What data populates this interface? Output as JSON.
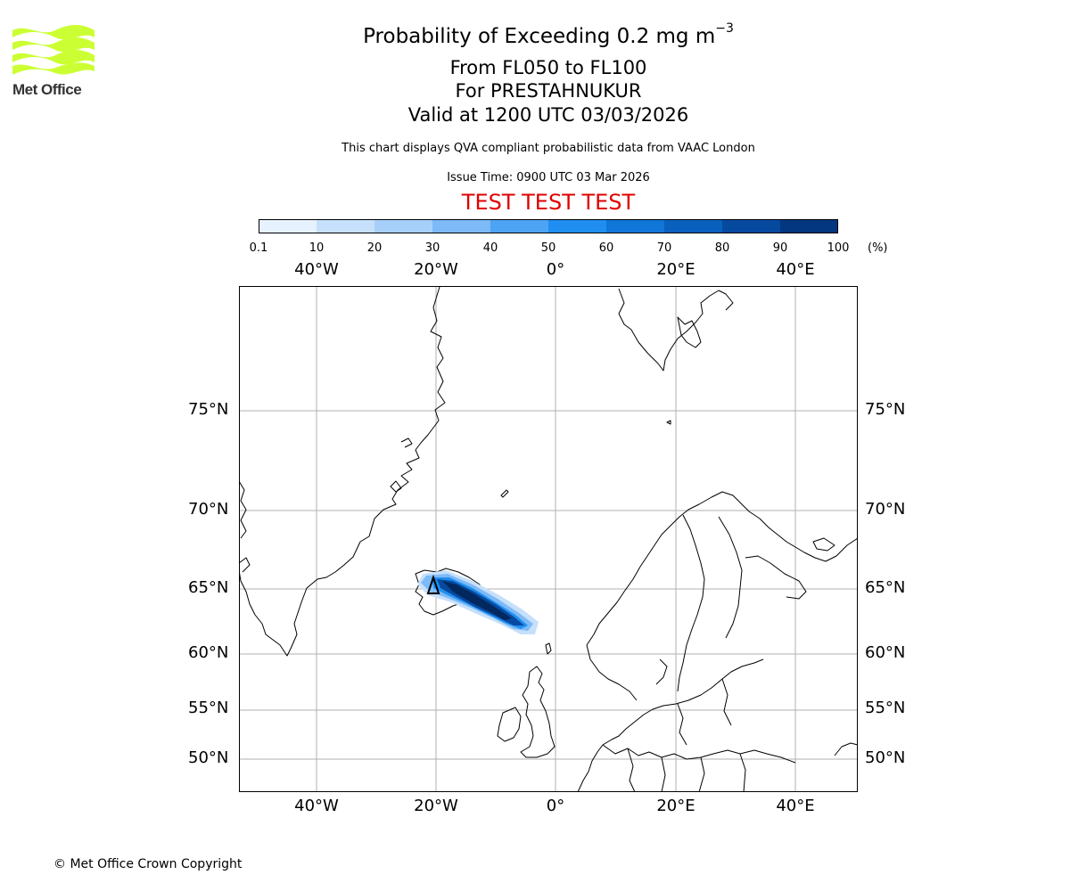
{
  "header": {
    "title": "Probability of Exceeding 0.2 mg m",
    "title_superscript": "−3",
    "flight_levels": "From FL050 to FL100",
    "volcano": "For PRESTAHNUKUR",
    "validity": "Valid at 1200 UTC 03/03/2026",
    "disclaimer": "This chart displays QVA compliant probabilistic data from VAAC London",
    "issue_time": "Issue Time: 0900 UTC 03 Mar 2026",
    "test_banner": "TEST TEST TEST"
  },
  "logo": {
    "text": "Met Office",
    "icon": "met-office-waves-logo",
    "color": "#ccff33"
  },
  "colorbar": {
    "ticks": [
      "0.1",
      "10",
      "20",
      "30",
      "40",
      "50",
      "60",
      "70",
      "80",
      "90",
      "100"
    ],
    "unit": "(%)",
    "colors": [
      "#e6f2ff",
      "#c6e0fb",
      "#a6d0fa",
      "#7dbaf7",
      "#4ea4f4",
      "#1f8ef0",
      "#1076d8",
      "#0a60bd",
      "#064aa0",
      "#033780",
      "#02285e"
    ]
  },
  "map": {
    "lon_labels": [
      "40°W",
      "20°W",
      "0°",
      "20°E",
      "40°E"
    ],
    "lat_labels": [
      "75°N",
      "70°N",
      "65°N",
      "60°N",
      "55°N",
      "50°N"
    ],
    "volcano_marker_icon": "volcano-triangle-icon",
    "gridline_color": "#b0b0b0"
  },
  "footer": {
    "copyright": "© Met Office Crown Copyright"
  }
}
